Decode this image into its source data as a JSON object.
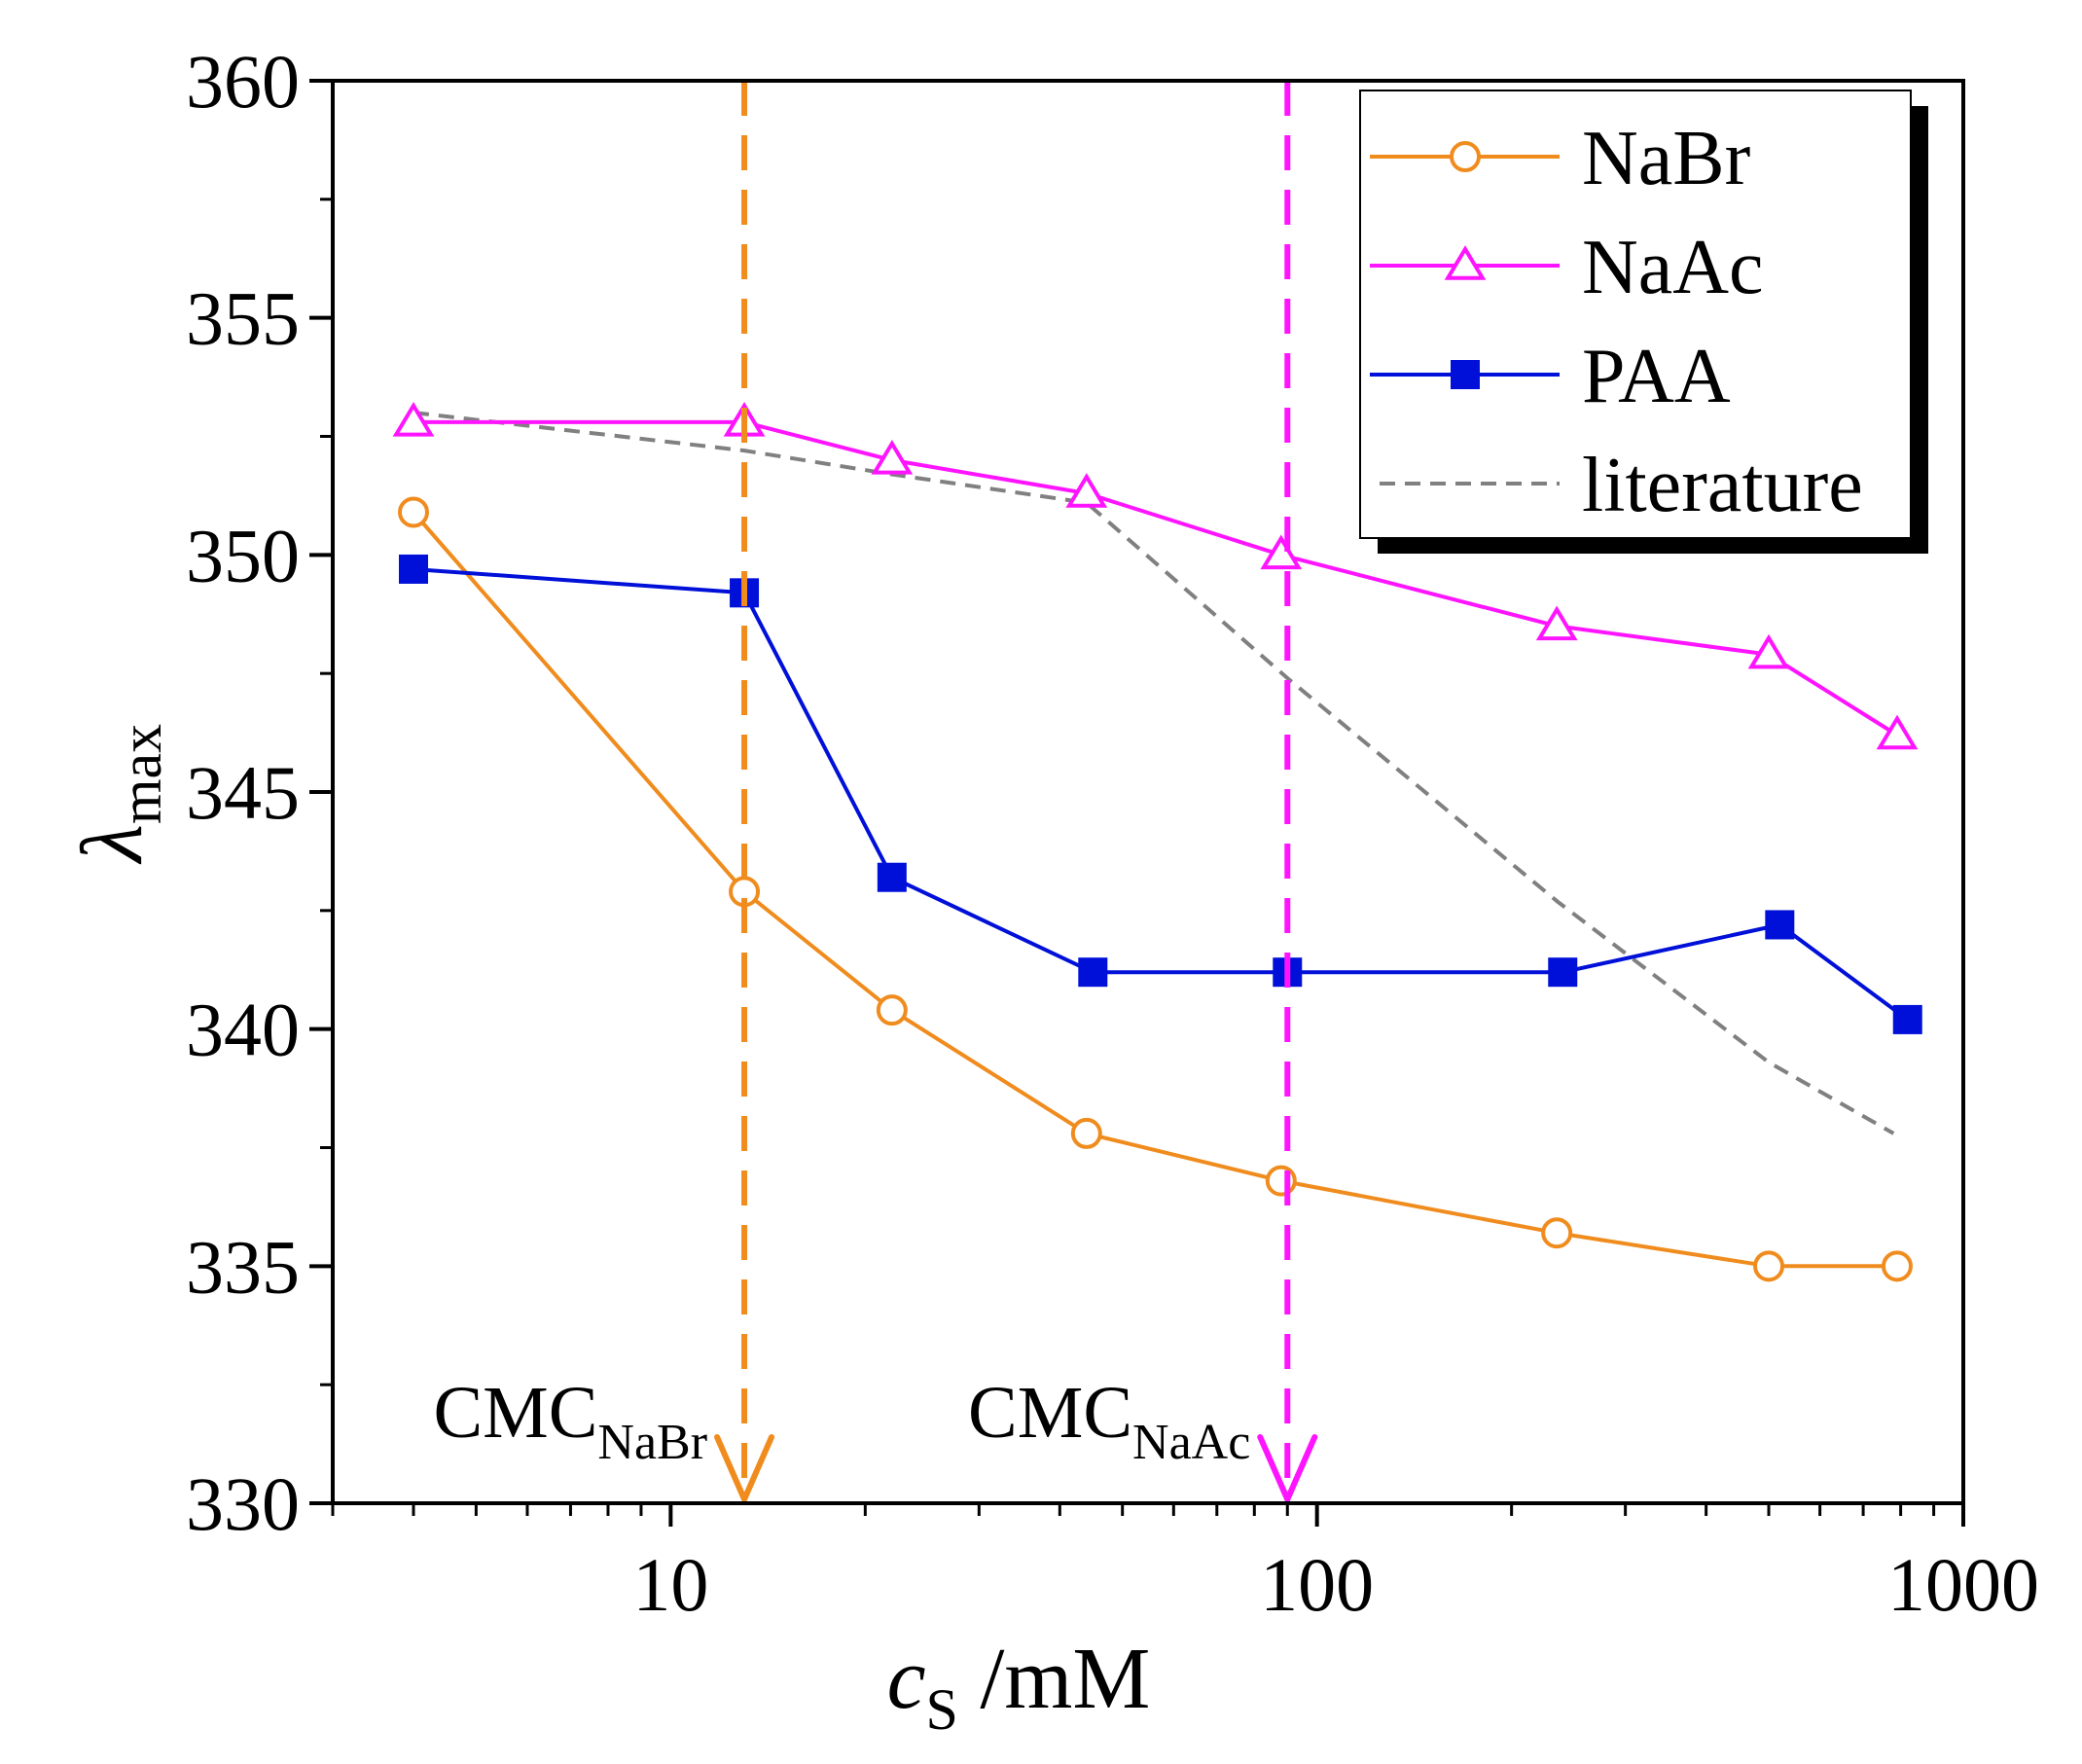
{
  "chart_data": {
    "type": "line",
    "x_scale": "log",
    "xlim": [
      3,
      1000
    ],
    "ylim": [
      330,
      360
    ],
    "grid": false,
    "legend_position": "top-right",
    "xlabel": {
      "main": "c",
      "sub": "S",
      "unit": " /mM"
    },
    "ylabel": {
      "main": "λ",
      "sub": "max"
    },
    "x_ticks": [
      {
        "value": 10,
        "label": "10"
      },
      {
        "value": 100,
        "label": "100"
      },
      {
        "value": 1000,
        "label": "1000"
      }
    ],
    "y_ticks": [
      {
        "value": 330,
        "label": "330"
      },
      {
        "value": 335,
        "label": "335"
      },
      {
        "value": 340,
        "label": "340"
      },
      {
        "value": 345,
        "label": "345"
      },
      {
        "value": 350,
        "label": "350"
      },
      {
        "value": 355,
        "label": "355"
      },
      {
        "value": 360,
        "label": "360"
      }
    ],
    "series": [
      {
        "id": "nabr",
        "name": "NaBr",
        "color": "#f08c1e",
        "marker": "open-circle",
        "line": "solid",
        "points": [
          [
            4,
            350.9
          ],
          [
            13,
            342.9
          ],
          [
            22,
            340.4
          ],
          [
            44,
            337.8
          ],
          [
            88,
            336.8
          ],
          [
            235,
            335.7
          ],
          [
            500,
            335.0
          ],
          [
            790,
            335.0
          ]
        ]
      },
      {
        "id": "naac",
        "name": "NaAc",
        "color": "#ff14ff",
        "marker": "open-triangle",
        "line": "solid",
        "points": [
          [
            4,
            352.8
          ],
          [
            13,
            352.8
          ],
          [
            22,
            352.0
          ],
          [
            44,
            351.3
          ],
          [
            88,
            350.0
          ],
          [
            235,
            348.5
          ],
          [
            500,
            347.9
          ],
          [
            790,
            346.2
          ]
        ]
      },
      {
        "id": "paa",
        "name": "PAA",
        "color": "#0010d8",
        "marker": "filled-square",
        "line": "solid",
        "points": [
          [
            4,
            349.7
          ],
          [
            13,
            349.2
          ],
          [
            22,
            343.2
          ],
          [
            45,
            341.2
          ],
          [
            90,
            341.2
          ],
          [
            240,
            341.2
          ],
          [
            520,
            342.2
          ],
          [
            820,
            340.2
          ]
        ]
      },
      {
        "id": "literature",
        "name": "literature",
        "color": "#808080",
        "marker": "none",
        "line": "dashed",
        "points": [
          [
            4,
            353.0
          ],
          [
            13,
            352.2
          ],
          [
            22,
            351.7
          ],
          [
            44,
            351.1
          ],
          [
            90,
            347.4
          ],
          [
            235,
            342.7
          ],
          [
            500,
            339.3
          ],
          [
            780,
            337.8
          ]
        ]
      }
    ],
    "annotations": [
      {
        "id": "cmc-nabr",
        "main": "CMC",
        "sub": "NaBr",
        "x": 13,
        "color": "#f08c1e"
      },
      {
        "id": "cmc-naac",
        "main": "CMC",
        "sub": "NaAc",
        "x": 90,
        "color": "#ff14ff"
      }
    ]
  }
}
